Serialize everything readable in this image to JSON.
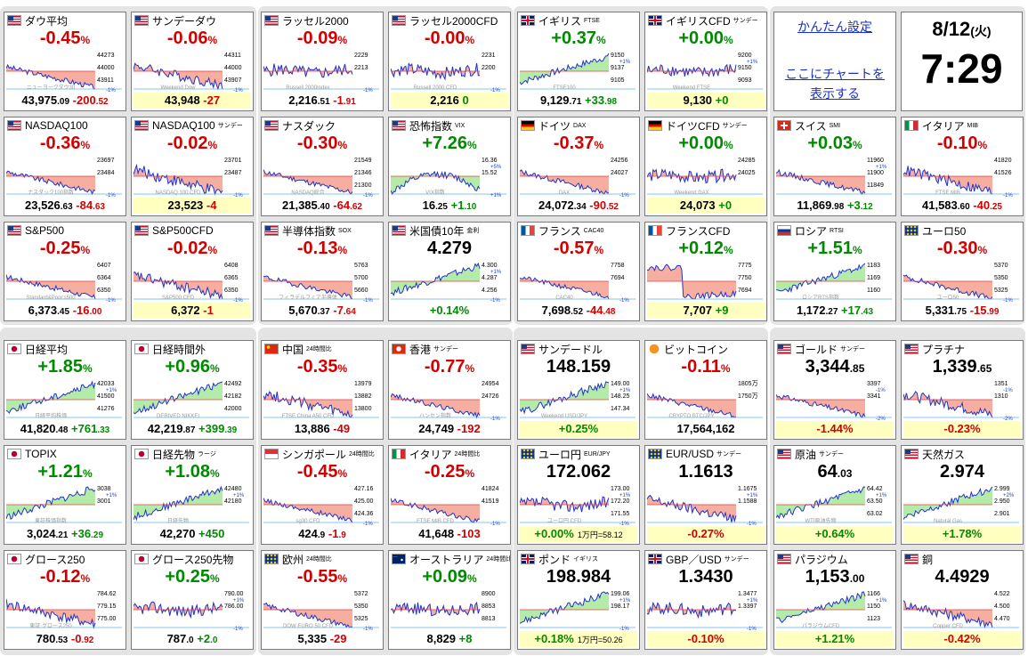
{
  "settings": {
    "easy_setup": "かんたん設定",
    "chart_link_line1": "ここにチャートを",
    "chart_link_line2": "表示する"
  },
  "clock": {
    "date": "8/12",
    "weekday": "(火)",
    "time": "7:29"
  },
  "tiles": [
    {
      "id": "dow",
      "flag": "us",
      "name": "ダウ平均",
      "sub": "",
      "change": "-0.45",
      "price_main": "43,975",
      "price_dec": ".09",
      "diff_main": "-200",
      "diff_dec": ".52",
      "price_hl": false,
      "labels": [
        "44273",
        "44000",
        "43911"
      ],
      "pct": [
        "",
        "-1%"
      ],
      "watermark": "ニューヨークダウ30",
      "shape": "down"
    },
    {
      "id": "dow_sun",
      "flag": "us",
      "name": "サンデーダウ",
      "sub": "",
      "change": "-0.06",
      "price_main": "43,948",
      "price_dec": "",
      "diff_main": "-27",
      "diff_dec": "",
      "price_hl": true,
      "labels": [
        "44311",
        "44000",
        "43907"
      ],
      "pct": [
        "",
        "-1%"
      ],
      "watermark": "Weekend Dow",
      "shape": "flatdown"
    },
    {
      "id": "rut",
      "flag": "us",
      "name": "ラッセル2000",
      "sub": "",
      "change": "-0.09",
      "price_main": "2,216",
      "price_dec": ".51",
      "diff_main": "-1",
      "diff_dec": ".91",
      "price_hl": false,
      "labels": [
        "2229",
        "2213"
      ],
      "pct": [
        "",
        "-1%"
      ],
      "watermark": "Russell 2000Index",
      "shape": "flat"
    },
    {
      "id": "rut_cfd",
      "flag": "us",
      "name": "ラッセル2000CFD",
      "sub": "",
      "change": "-0.00",
      "price_main": "2,216",
      "price_dec": "",
      "diff_main": "0",
      "diff_dec": "",
      "price_hl": true,
      "labels": [
        "2231",
        "2200"
      ],
      "pct": [
        "",
        "-1%"
      ],
      "watermark": "Russell 2000 CFD",
      "shape": "flat"
    },
    {
      "id": "ftse",
      "flag": "uk",
      "name": "イギリス",
      "sub": "FTSE",
      "change": "+0.37",
      "price_main": "9,129",
      "price_dec": ".71",
      "diff_main": "+33",
      "diff_dec": ".98",
      "price_hl": false,
      "labels": [
        "9150",
        "9137",
        "9105"
      ],
      "pct": [
        "+1%",
        ""
      ],
      "watermark": "FTSE100",
      "shape": "up"
    },
    {
      "id": "ftse_cfd",
      "flag": "uk",
      "name": "イギリスCFD",
      "sub": "サンデー",
      "change": "+0.00",
      "price_main": "9,130",
      "price_dec": "",
      "diff_main": "+0",
      "diff_dec": "",
      "price_hl": true,
      "labels": [
        "9200",
        "9150",
        "9093"
      ],
      "pct": [
        "+1%",
        ""
      ],
      "watermark": "Weekend FTSE",
      "shape": "flat"
    },
    {
      "id": "nasdaq100",
      "flag": "us",
      "name": "NASDAQ100",
      "sub": "",
      "change": "-0.36",
      "price_main": "23,526",
      "price_dec": ".63",
      "diff_main": "-84",
      "diff_dec": ".63",
      "price_hl": false,
      "labels": [
        "23697",
        "23484"
      ],
      "pct": [
        "",
        "-1%"
      ],
      "watermark": "ナスダック100指数",
      "shape": "down"
    },
    {
      "id": "nasdaq100_sun",
      "flag": "us",
      "name": "NASDAQ100",
      "sub": "サンデー",
      "change": "-0.02",
      "price_main": "23,523",
      "price_dec": "",
      "diff_main": "-4",
      "diff_dec": "",
      "price_hl": true,
      "labels": [
        "23701",
        "23487"
      ],
      "pct": [
        "",
        "-1%"
      ],
      "watermark": "NASDAQ 100 CFD",
      "shape": "flatdown"
    },
    {
      "id": "nasdaq",
      "flag": "us",
      "name": "ナスダック",
      "sub": "",
      "change": "-0.30",
      "price_main": "21,385",
      "price_dec": ".40",
      "diff_main": "-64",
      "diff_dec": ".62",
      "price_hl": false,
      "labels": [
        "21549",
        "21346",
        "21300"
      ],
      "pct": [
        "",
        "-1%"
      ],
      "watermark": "NASDAQ総合",
      "shape": "down"
    },
    {
      "id": "vix",
      "flag": "us",
      "name": "恐怖指数",
      "sub": "VIX",
      "change": "+7.26",
      "price_main": "16",
      "price_dec": ".25",
      "diff_main": "+1",
      "diff_dec": ".10",
      "price_hl": false,
      "labels": [
        "16.36",
        "15.52"
      ],
      "pct": [
        "+5%",
        "+1%"
      ],
      "watermark": "VIX指数",
      "shape": "vix"
    },
    {
      "id": "dax",
      "flag": "de",
      "name": "ドイツ",
      "sub": "DAX",
      "change": "-0.37",
      "price_main": "24,072",
      "price_dec": ".34",
      "diff_main": "-90",
      "diff_dec": ".52",
      "price_hl": false,
      "labels": [
        "24256",
        "24027"
      ],
      "pct": [
        "",
        "-1%"
      ],
      "watermark": "DAX",
      "shape": "down"
    },
    {
      "id": "dax_cfd",
      "flag": "de",
      "name": "ドイツCFD",
      "sub": "サンデー",
      "change": "+0.00",
      "price_main": "24,073",
      "price_dec": "",
      "diff_main": "+0",
      "diff_dec": "",
      "price_hl": true,
      "labels": [
        "24285",
        "24025"
      ],
      "pct": [
        "",
        ""
      ],
      "watermark": "Weekend DAX",
      "shape": "flat"
    },
    {
      "id": "smi",
      "flag": "ch",
      "name": "スイス",
      "sub": "SMI",
      "change": "+0.03",
      "price_main": "11,869",
      "price_dec": ".98",
      "diff_main": "+3",
      "diff_dec": ".12",
      "price_hl": false,
      "labels": [
        "11960",
        "11900",
        "11849"
      ],
      "pct": [
        "+1%",
        ""
      ],
      "watermark": "",
      "shape": "down"
    },
    {
      "id": "mib",
      "flag": "it",
      "name": "イタリア",
      "sub": "MIB",
      "change": "-0.10",
      "price_main": "41,583",
      "price_dec": ".60",
      "diff_main": "-40",
      "diff_dec": ".25",
      "price_hl": false,
      "labels": [
        "41820",
        "41526"
      ],
      "pct": [
        "",
        "-1%"
      ],
      "watermark": "FTSE MIB",
      "shape": "flatdown"
    },
    {
      "id": "sp500",
      "flag": "us",
      "name": "S&P500",
      "sub": "",
      "change": "-0.25",
      "price_main": "6,373",
      "price_dec": ".45",
      "diff_main": "-16",
      "diff_dec": ".00",
      "price_hl": false,
      "labels": [
        "6407",
        "6364",
        "6350"
      ],
      "pct": [
        "",
        "-1%"
      ],
      "watermark": "Standard&Poor's500",
      "shape": "down"
    },
    {
      "id": "sp500_cfd",
      "flag": "us",
      "name": "S&P500CFD",
      "sub": "",
      "change": "-0.02",
      "price_main": "6,372",
      "price_dec": "",
      "diff_main": "-1",
      "diff_dec": "",
      "price_hl": true,
      "labels": [
        "6408",
        "6365",
        "6350"
      ],
      "pct": [
        "",
        "-1%"
      ],
      "watermark": "S&P500 CFD",
      "shape": "flatdown"
    },
    {
      "id": "sox",
      "flag": "us",
      "name": "半導体指数",
      "sub": "SOX",
      "change": "-0.13",
      "price_main": "5,670",
      "price_dec": ".37",
      "diff_main": "-7",
      "diff_dec": ".64",
      "price_hl": false,
      "labels": [
        "5763",
        "5700",
        "5660"
      ],
      "pct": [
        "",
        "-1%"
      ],
      "watermark": "フィラデルフィア半導体",
      "shape": "down"
    },
    {
      "id": "us10y",
      "flag": "us",
      "name": "米国債10年",
      "sub": "金利",
      "change": "4.279",
      "price_main": "",
      "price_dec": "",
      "diff_main": "+0.14%",
      "diff_dec": "",
      "price_hl": false,
      "labels": [
        "4.300",
        "4.287",
        "4.256"
      ],
      "pct": [
        "+1%",
        "-1%"
      ],
      "watermark": "",
      "shape": "up"
    },
    {
      "id": "cac40",
      "flag": "fr",
      "name": "フランス",
      "sub": "CAC40",
      "change": "-0.57",
      "price_main": "7,698",
      "price_dec": ".52",
      "diff_main": "-44",
      "diff_dec": ".48",
      "price_hl": false,
      "labels": [
        "7758",
        "7694"
      ],
      "pct": [
        "",
        "-1%"
      ],
      "watermark": "CAC40",
      "shape": "down"
    },
    {
      "id": "cac_cfd",
      "flag": "fr",
      "name": "フランスCFD",
      "sub": "",
      "change": "+0.12",
      "price_main": "7,707",
      "price_dec": "",
      "diff_main": "+9",
      "diff_dec": "",
      "price_hl": true,
      "labels": [
        "7775",
        "7750",
        "7694"
      ],
      "pct": [
        "",
        ""
      ],
      "watermark": "",
      "shape": "drop"
    },
    {
      "id": "rtsi",
      "flag": "ru",
      "name": "ロシア",
      "sub": "RTSI",
      "change": "+1.51",
      "price_main": "1,172",
      "price_dec": ".27",
      "diff_main": "+17",
      "diff_dec": ".43",
      "price_hl": false,
      "labels": [
        "1183",
        "1169",
        "1160"
      ],
      "pct": [
        "",
        ""
      ],
      "watermark": "ロシアRTS指数",
      "shape": "up"
    },
    {
      "id": "euro50",
      "flag": "eu",
      "name": "ユーロ50",
      "sub": "",
      "change": "-0.30",
      "price_main": "5,331",
      "price_dec": ".75",
      "diff_main": "-15",
      "diff_dec": ".99",
      "price_hl": false,
      "labels": [
        "5370",
        "5350",
        "5325"
      ],
      "pct": [
        "",
        "-1%"
      ],
      "watermark": "ユーロ50",
      "shape": "down"
    },
    {
      "id": "n225",
      "flag": "jp",
      "name": "日経平均",
      "sub": "",
      "change": "+1.85",
      "price_main": "41,820",
      "price_dec": ".48",
      "diff_main": "+761",
      "diff_dec": ".33",
      "price_hl": false,
      "labels": [
        "42033",
        "41500",
        "41276"
      ],
      "pct": [
        "+1%",
        ""
      ],
      "watermark": "日経平均株価",
      "shape": "up"
    },
    {
      "id": "n225_off",
      "flag": "jp",
      "name": "日経時間外",
      "sub": "",
      "change": "+0.96",
      "price_main": "42,219",
      "price_dec": ".87",
      "diff_main": "+399",
      "diff_dec": ".39",
      "price_hl": false,
      "labels": [
        "42492",
        "42182",
        "42000"
      ],
      "pct": [
        "",
        ""
      ],
      "watermark": "DERIVED NIKKEI",
      "shape": "up"
    },
    {
      "id": "china",
      "flag": "cn",
      "name": "中国",
      "sub": "24時間比",
      "change": "-0.35",
      "price_main": "13,886",
      "price_dec": "",
      "diff_main": "-49",
      "diff_dec": "",
      "price_hl": false,
      "labels": [
        "13979",
        "13882",
        "13800"
      ],
      "pct": [
        "",
        ""
      ],
      "watermark": "FTSE China A50 CFD",
      "shape": "flatdown"
    },
    {
      "id": "hk",
      "flag": "hk",
      "name": "香港",
      "sub": "サンデー",
      "change": "-0.77",
      "price_main": "24,749",
      "price_dec": "",
      "diff_main": "-192",
      "diff_dec": "",
      "price_hl": false,
      "labels": [
        "24954",
        "24726"
      ],
      "pct": [
        "",
        "-1%"
      ],
      "watermark": "ハンセン指数",
      "shape": "down"
    },
    {
      "id": "usdjpy",
      "flag": "us",
      "name": "サンデードル",
      "sub": "",
      "change": "148.159",
      "price_main": "",
      "price_dec": "",
      "diff_main": "+0.25%",
      "diff_dec": "",
      "price_hl": true,
      "labels": [
        "149.00",
        "148.25",
        "147.34"
      ],
      "pct": [
        "+1%",
        ""
      ],
      "watermark": "Weekend USD/JPY",
      "shape": "up"
    },
    {
      "id": "btc",
      "flag": "btc",
      "name": "ビットコイン",
      "sub": "",
      "change": "-0.11",
      "price_main": "17,564,162",
      "price_dec": "",
      "diff_main": "",
      "diff_dec": "",
      "price_hl": false,
      "labels": [
        "1805万",
        "1750万"
      ],
      "pct": [
        "",
        ""
      ],
      "watermark": "CRYPTO BTC/JPY",
      "shape": "down"
    },
    {
      "id": "gold",
      "flag": "us",
      "name": "ゴールド",
      "sub": "サンデー",
      "change": "3,344",
      "change_dec": ".85",
      "price_main": "",
      "price_dec": "",
      "diff_main": "-1.44%",
      "diff_dec": "",
      "price_hl": true,
      "labels": [
        "3397",
        "3341"
      ],
      "pct": [
        "-1%",
        "-2%"
      ],
      "watermark": "",
      "shape": "down"
    },
    {
      "id": "platinum",
      "flag": "us",
      "name": "プラチナ",
      "sub": "",
      "change": "1,339",
      "change_dec": ".65",
      "price_main": "",
      "price_dec": "",
      "diff_main": "-0.23%",
      "diff_dec": "",
      "price_hl": true,
      "labels": [
        "1351",
        "1310"
      ],
      "pct": [
        "-1%",
        "-2%"
      ],
      "watermark": "",
      "shape": "flatdown"
    },
    {
      "id": "topix",
      "flag": "jp",
      "name": "TOPIX",
      "sub": "",
      "change": "+1.21",
      "price_main": "3,024",
      "price_dec": ".21",
      "diff_main": "+36",
      "diff_dec": ".29",
      "price_hl": false,
      "labels": [
        "3038",
        "3001"
      ],
      "pct": [
        "+1%",
        ""
      ],
      "watermark": "東証株価指数",
      "shape": "up"
    },
    {
      "id": "n225_fut",
      "flag": "jp",
      "name": "日経先物",
      "sub": "ラージ",
      "change": "+1.08",
      "price_main": "42,270",
      "price_dec": "",
      "diff_main": "+450",
      "diff_dec": "",
      "price_hl": false,
      "labels": [
        "42480",
        "42180"
      ],
      "pct": [
        "+1%",
        ""
      ],
      "watermark": "日経先物",
      "shape": "up"
    },
    {
      "id": "sg",
      "flag": "sg",
      "name": "シンガポール",
      "sub": "24時間比",
      "change": "-0.45",
      "price_main": "424",
      "price_dec": ".9",
      "diff_main": "-1",
      "diff_dec": ".9",
      "price_hl": false,
      "labels": [
        "427.16",
        "425.00",
        "424.36"
      ],
      "pct": [
        "",
        "-1%"
      ],
      "watermark": "sg30 CFD",
      "shape": "down"
    },
    {
      "id": "italy",
      "flag": "it",
      "name": "イタリア",
      "sub": "24時間比",
      "change": "-0.25",
      "price_main": "41,648",
      "price_dec": "",
      "diff_main": "-103",
      "diff_dec": "",
      "price_hl": false,
      "labels": [
        "41824",
        "41519"
      ],
      "pct": [
        "",
        "-1%"
      ],
      "watermark": "FTSE MIB CFD",
      "shape": "down"
    },
    {
      "id": "eurjpy",
      "flag": "eu",
      "name": "ユーロ円",
      "sub": "EUR/JPY",
      "change": "172.062",
      "price_main": "",
      "price_dec": "",
      "diff_main": "+0.00%",
      "diff_dec": "",
      "diff_extra": "1万円=58.12",
      "price_hl": true,
      "labels": [
        "173.00",
        "172.20",
        "171.55"
      ],
      "pct": [
        "+1%",
        "-1%"
      ],
      "watermark": "ユーロ円 CFD",
      "shape": "flat"
    },
    {
      "id": "eurusd",
      "flag": "eu",
      "name": "EUR/USD",
      "sub": "サンデー",
      "change": "1.1613",
      "price_main": "",
      "price_dec": "",
      "diff_main": "-0.27%",
      "diff_dec": "",
      "price_hl": true,
      "labels": [
        "1.1675",
        "1.1588"
      ],
      "pct": [
        "+1%",
        "-1%"
      ],
      "watermark": "",
      "shape": "flatdown"
    },
    {
      "id": "oil",
      "flag": "us",
      "name": "原油",
      "sub": "サンデー",
      "change": "64",
      "change_dec": ".03",
      "price_main": "",
      "price_dec": "",
      "diff_main": "+0.64%",
      "diff_dec": "",
      "price_hl": true,
      "labels": [
        "64.42",
        "63.50",
        "63.02"
      ],
      "pct": [
        "+1%",
        ""
      ],
      "watermark": "WTI原油先物",
      "shape": "up"
    },
    {
      "id": "gas",
      "flag": "us",
      "name": "天然ガス",
      "sub": "",
      "change": "2.974",
      "price_main": "",
      "price_dec": "",
      "diff_main": "+1.78%",
      "diff_dec": "",
      "price_hl": true,
      "labels": [
        "2.999",
        "2.950",
        "2.901"
      ],
      "pct": [
        "+2%",
        ""
      ],
      "watermark": "Natural Gas",
      "shape": "up"
    },
    {
      "id": "g250",
      "flag": "jp",
      "name": "グロース250",
      "sub": "",
      "change": "-0.12",
      "price_main": "780",
      "price_dec": ".53",
      "diff_main": "-0",
      "diff_dec": ".92",
      "price_hl": false,
      "labels": [
        "784.62",
        "779.15",
        "775.00"
      ],
      "pct": [
        "",
        ""
      ],
      "watermark": "東証 グロース250",
      "shape": "flatdown"
    },
    {
      "id": "g250_fut",
      "flag": "jp",
      "name": "グロース250先物",
      "sub": "",
      "change": "+0.25",
      "price_main": "787",
      "price_dec": ".0",
      "diff_main": "+2",
      "diff_dec": ".0",
      "price_hl": false,
      "labels": [
        "790.00",
        "786.00"
      ],
      "pct": [
        "+1%",
        "-1%"
      ],
      "watermark": "",
      "shape": "flat"
    },
    {
      "id": "eu24",
      "flag": "eu",
      "name": "欧州",
      "sub": "24時間比",
      "change": "-0.55",
      "price_main": "5,335",
      "price_dec": "",
      "diff_main": "-29",
      "diff_dec": "",
      "price_hl": false,
      "labels": [
        "5372",
        "5350",
        "5325"
      ],
      "pct": [
        "",
        "-1%"
      ],
      "watermark": "DOW EURO 50 CFD",
      "shape": "down"
    },
    {
      "id": "au",
      "flag": "au",
      "name": "オーストラリア",
      "sub": "24時間比",
      "change": "+0.09",
      "price_main": "8,829",
      "price_dec": "",
      "diff_main": "+8",
      "diff_dec": "",
      "price_hl": false,
      "labels": [
        "8900",
        "8853",
        "8813"
      ],
      "pct": [
        "",
        ""
      ],
      "watermark": "",
      "shape": "flat"
    },
    {
      "id": "gbpjpy",
      "flag": "uk",
      "name": "ポンド",
      "sub": "イギリス",
      "change": "198.984",
      "price_main": "",
      "price_dec": "",
      "diff_main": "+0.18%",
      "diff_dec": "",
      "diff_extra": "1万円=50.26",
      "price_hl": true,
      "labels": [
        "199.06",
        "198.17"
      ],
      "pct": [
        "+1%",
        "-1%"
      ],
      "watermark": "",
      "shape": "up"
    },
    {
      "id": "gbpusd",
      "flag": "uk",
      "name": "GBP／USD",
      "sub": "サンデー",
      "change": "1.3430",
      "price_main": "",
      "price_dec": "",
      "diff_main": "-0.10%",
      "diff_dec": "",
      "price_hl": true,
      "labels": [
        "1.3477",
        "1.3397"
      ],
      "pct": [
        "+1%",
        "-1%"
      ],
      "watermark": "",
      "shape": "flat"
    },
    {
      "id": "palladium",
      "flag": "us",
      "name": "パラジウム",
      "sub": "",
      "change": "1,153",
      "change_dec": ".00",
      "price_main": "",
      "price_dec": "",
      "diff_main": "+1.21%",
      "diff_dec": "",
      "price_hl": true,
      "labels": [
        "1166",
        "1150",
        "1123"
      ],
      "pct": [
        "+1%",
        ""
      ],
      "watermark": "パラジウムCFD",
      "shape": "up"
    },
    {
      "id": "copper",
      "flag": "us",
      "name": "銅",
      "sub": "",
      "change": "4.4929",
      "price_main": "",
      "price_dec": "",
      "diff_main": "-0.42%",
      "diff_dec": "",
      "price_hl": true,
      "labels": [
        "4.522",
        "4.500",
        "4.470"
      ],
      "pct": [
        "",
        ""
      ],
      "watermark": "Copper CFD",
      "shape": "flatdown"
    }
  ]
}
